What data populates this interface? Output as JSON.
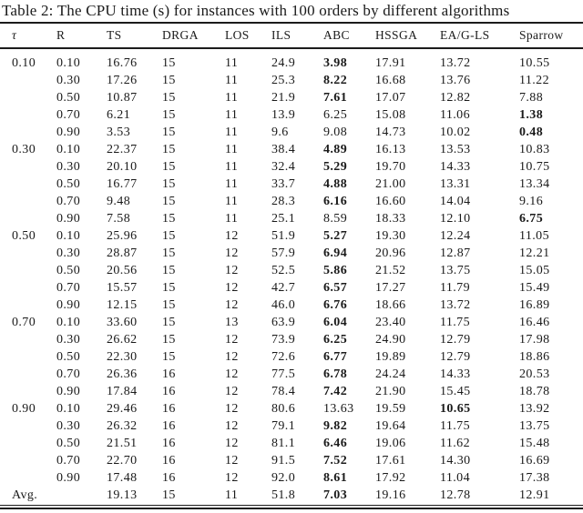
{
  "title": "Table 2: The CPU time (s) for instances with 100 orders by different algorithms",
  "columns": [
    "τ",
    "R",
    "TS",
    "DRGA",
    "LOS",
    "ILS",
    "ABC",
    "HSSGA",
    "EA/G-LS",
    "Sparrow"
  ],
  "colors": {
    "text": "#1a1a1a",
    "rule": "#1b1b1b",
    "background": "#ffffff"
  },
  "rows": [
    {
      "cells": [
        "0.10",
        "0.10",
        "16.76",
        "15",
        "11",
        "24.9",
        "3.98",
        "17.91",
        "13.72",
        "10.55"
      ],
      "bold": [
        6
      ]
    },
    {
      "cells": [
        "",
        "0.30",
        "17.26",
        "15",
        "11",
        "25.3",
        "8.22",
        "16.68",
        "13.76",
        "11.22"
      ],
      "bold": [
        6
      ]
    },
    {
      "cells": [
        "",
        "0.50",
        "10.87",
        "15",
        "11",
        "21.9",
        "7.61",
        "17.07",
        "12.82",
        "7.88"
      ],
      "bold": [
        6
      ]
    },
    {
      "cells": [
        "",
        "0.70",
        "6.21",
        "15",
        "11",
        "13.9",
        "6.25",
        "15.08",
        "11.06",
        "1.38"
      ],
      "bold": [
        9
      ]
    },
    {
      "cells": [
        "",
        "0.90",
        "3.53",
        "15",
        "11",
        "9.6",
        "9.08",
        "14.73",
        "10.02",
        "0.48"
      ],
      "bold": [
        9
      ]
    },
    {
      "cells": [
        "0.30",
        "0.10",
        "22.37",
        "15",
        "11",
        "38.4",
        "4.89",
        "16.13",
        "13.53",
        "10.83"
      ],
      "bold": [
        6
      ]
    },
    {
      "cells": [
        "",
        "0.30",
        "20.10",
        "15",
        "11",
        "32.4",
        "5.29",
        "19.70",
        "14.33",
        "10.75"
      ],
      "bold": [
        6
      ]
    },
    {
      "cells": [
        "",
        "0.50",
        "16.77",
        "15",
        "11",
        "33.7",
        "4.88",
        "21.00",
        "13.31",
        "13.34"
      ],
      "bold": [
        6
      ]
    },
    {
      "cells": [
        "",
        "0.70",
        "9.48",
        "15",
        "11",
        "28.3",
        "6.16",
        "16.60",
        "14.04",
        "9.16"
      ],
      "bold": [
        6
      ]
    },
    {
      "cells": [
        "",
        "0.90",
        "7.58",
        "15",
        "11",
        "25.1",
        "8.59",
        "18.33",
        "12.10",
        "6.75"
      ],
      "bold": [
        9
      ]
    },
    {
      "cells": [
        "0.50",
        "0.10",
        "25.96",
        "15",
        "12",
        "51.9",
        "5.27",
        "19.30",
        "12.24",
        "11.05"
      ],
      "bold": [
        6
      ]
    },
    {
      "cells": [
        "",
        "0.30",
        "28.87",
        "15",
        "12",
        "57.9",
        "6.94",
        "20.96",
        "12.87",
        "12.21"
      ],
      "bold": [
        6
      ]
    },
    {
      "cells": [
        "",
        "0.50",
        "20.56",
        "15",
        "12",
        "52.5",
        "5.86",
        "21.52",
        "13.75",
        "15.05"
      ],
      "bold": [
        6
      ]
    },
    {
      "cells": [
        "",
        "0.70",
        "15.57",
        "15",
        "12",
        "42.7",
        "6.57",
        "17.27",
        "11.79",
        "15.49"
      ],
      "bold": [
        6
      ]
    },
    {
      "cells": [
        "",
        "0.90",
        "12.15",
        "15",
        "12",
        "46.0",
        "6.76",
        "18.66",
        "13.72",
        "16.89"
      ],
      "bold": [
        6
      ]
    },
    {
      "cells": [
        "0.70",
        "0.10",
        "33.60",
        "15",
        "13",
        "63.9",
        "6.04",
        "23.40",
        "11.75",
        "16.46"
      ],
      "bold": [
        6
      ]
    },
    {
      "cells": [
        "",
        "0.30",
        "26.62",
        "15",
        "12",
        "73.9",
        "6.25",
        "24.90",
        "12.79",
        "17.98"
      ],
      "bold": [
        6
      ]
    },
    {
      "cells": [
        "",
        "0.50",
        "22.30",
        "15",
        "12",
        "72.6",
        "6.77",
        "19.89",
        "12.79",
        "18.86"
      ],
      "bold": [
        6
      ]
    },
    {
      "cells": [
        "",
        "0.70",
        "26.36",
        "16",
        "12",
        "77.5",
        "6.78",
        "24.24",
        "14.33",
        "20.53"
      ],
      "bold": [
        6
      ]
    },
    {
      "cells": [
        "",
        "0.90",
        "17.84",
        "16",
        "12",
        "78.4",
        "7.42",
        "21.90",
        "15.45",
        "18.78"
      ],
      "bold": [
        6
      ]
    },
    {
      "cells": [
        "0.90",
        "0.10",
        "29.46",
        "16",
        "12",
        "80.6",
        "13.63",
        "19.59",
        "10.65",
        "13.92"
      ],
      "bold": [
        8
      ]
    },
    {
      "cells": [
        "",
        "0.30",
        "26.32",
        "16",
        "12",
        "79.1",
        "9.82",
        "19.64",
        "11.75",
        "13.75"
      ],
      "bold": [
        6
      ]
    },
    {
      "cells": [
        "",
        "0.50",
        "21.51",
        "16",
        "12",
        "81.1",
        "6.46",
        "19.06",
        "11.62",
        "15.48"
      ],
      "bold": [
        6
      ]
    },
    {
      "cells": [
        "",
        "0.70",
        "22.70",
        "16",
        "12",
        "91.5",
        "7.52",
        "17.61",
        "14.30",
        "16.69"
      ],
      "bold": [
        6
      ]
    },
    {
      "cells": [
        "",
        "0.90",
        "17.48",
        "16",
        "12",
        "92.0",
        "8.61",
        "17.92",
        "11.04",
        "17.38"
      ],
      "bold": [
        6
      ]
    },
    {
      "cells": [
        "Avg.",
        "",
        "19.13",
        "15",
        "11",
        "51.8",
        "7.03",
        "19.16",
        "12.78",
        "12.91"
      ],
      "bold": [
        6
      ]
    }
  ]
}
